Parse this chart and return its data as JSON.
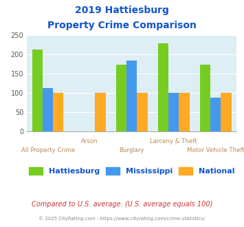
{
  "title_line1": "2019 Hattiesburg",
  "title_line2": "Property Crime Comparison",
  "categories": [
    "All Property Crime",
    "Arson",
    "Burglary",
    "Larceny & Theft",
    "Motor Vehicle Theft"
  ],
  "hattiesburg": [
    213,
    null,
    174,
    228,
    174
  ],
  "mississippi": [
    113,
    null,
    184,
    100,
    88
  ],
  "national": [
    100,
    100,
    100,
    100,
    100
  ],
  "colors": {
    "hattiesburg": "#77cc22",
    "mississippi": "#4499ee",
    "national": "#ffaa22"
  },
  "ylim": [
    0,
    250
  ],
  "yticks": [
    0,
    50,
    100,
    150,
    200,
    250
  ],
  "bg_color": "#ddeef4",
  "title_color": "#1155cc",
  "xlabel_color": "#bb8855",
  "footer_text": "Compared to U.S. average. (U.S. average equals 100)",
  "footer_color": "#cc3333",
  "copyright_text": "© 2025 CityRating.com - https://www.cityrating.com/crime-statistics/",
  "copyright_color": "#888888",
  "legend_labels": [
    "Hattiesburg",
    "Mississippi",
    "National"
  ]
}
